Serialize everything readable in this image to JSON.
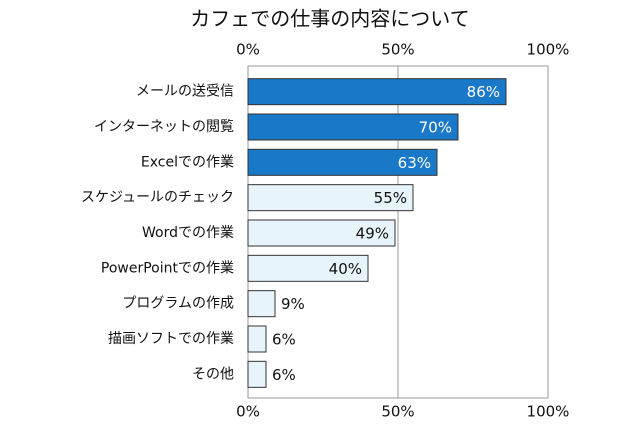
{
  "chart_data": {
    "type": "bar",
    "orientation": "horizontal",
    "title": "カフェでの仕事の内容について",
    "categories": [
      "メールの送受信",
      "インターネットの閲覧",
      "Excelでの作業",
      "スケジュールのチェック",
      "Wordでの作業",
      "PowerPointでの作業",
      "プログラムの作成",
      "描画ソフトでの作業",
      "その他"
    ],
    "values": [
      86,
      70,
      63,
      55,
      49,
      40,
      9,
      6,
      6
    ],
    "value_labels": [
      "86%",
      "70%",
      "63%",
      "55%",
      "49%",
      "40%",
      "9%",
      "6%",
      "6%"
    ],
    "colors": [
      "#1a78c8",
      "#1a78c8",
      "#1a78c8",
      "#e8f4fb",
      "#e8f4fb",
      "#e8f4fb",
      "#e8f4fb",
      "#e8f4fb",
      "#e8f4fb"
    ],
    "xlim": [
      0,
      100
    ],
    "xticks": [
      {
        "value": 0,
        "label": "0%"
      },
      {
        "value": 50,
        "label": "50%"
      },
      {
        "value": 100,
        "label": "100%"
      }
    ],
    "grid": true
  }
}
